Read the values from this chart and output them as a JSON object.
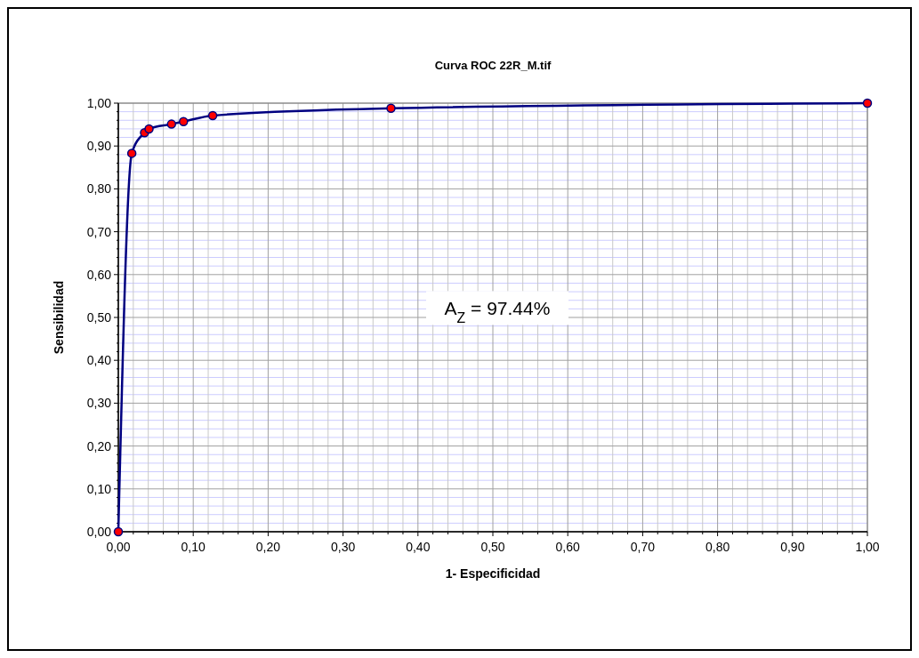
{
  "chart_data": {
    "type": "line",
    "title": "Curva ROC 22R_M.tif",
    "xlabel": "1- Especificidad",
    "ylabel": "Sensibilidad",
    "x": [
      0,
      0.018,
      0.035,
      0.041,
      0.071,
      0.087,
      0.126,
      0.364,
      1
    ],
    "series": [
      {
        "color": "#000080",
        "values": [
          0,
          0.883,
          0.931,
          0.94,
          0.951,
          0.957,
          0.971,
          0.988,
          1
        ]
      }
    ],
    "marker": "circle",
    "line_style": "solid",
    "grid": true,
    "xlim": [
      0,
      1
    ],
    "ylim": [
      0,
      1
    ],
    "xticks": [
      {
        "value": 0,
        "label": "0,00"
      },
      {
        "value": 0.02,
        "label": null
      },
      {
        "value": 0.04,
        "label": null
      },
      {
        "value": 0.06,
        "label": null
      },
      {
        "value": 0.08,
        "label": null
      },
      {
        "value": 0.1,
        "label": "0,10"
      },
      {
        "value": 0.12,
        "label": null
      },
      {
        "value": 0.14,
        "label": null
      },
      {
        "value": 0.16,
        "label": null
      },
      {
        "value": 0.18,
        "label": null
      },
      {
        "value": 0.2,
        "label": "0,20"
      },
      {
        "value": 0.22,
        "label": null
      },
      {
        "value": 0.24,
        "label": null
      },
      {
        "value": 0.26,
        "label": null
      },
      {
        "value": 0.28,
        "label": null
      },
      {
        "value": 0.3,
        "label": "0,30"
      },
      {
        "value": 0.32,
        "label": null
      },
      {
        "value": 0.34,
        "label": null
      },
      {
        "value": 0.36,
        "label": null
      },
      {
        "value": 0.38,
        "label": null
      },
      {
        "value": 0.4,
        "label": "0,40"
      },
      {
        "value": 0.42,
        "label": null
      },
      {
        "value": 0.44,
        "label": null
      },
      {
        "value": 0.46,
        "label": null
      },
      {
        "value": 0.48,
        "label": null
      },
      {
        "value": 0.5,
        "label": "0,50"
      },
      {
        "value": 0.52,
        "label": null
      },
      {
        "value": 0.54,
        "label": null
      },
      {
        "value": 0.56,
        "label": null
      },
      {
        "value": 0.58,
        "label": null
      },
      {
        "value": 0.6,
        "label": "0,60"
      },
      {
        "value": 0.62,
        "label": null
      },
      {
        "value": 0.64,
        "label": null
      },
      {
        "value": 0.66,
        "label": null
      },
      {
        "value": 0.68,
        "label": null
      },
      {
        "value": 0.7,
        "label": "0,70"
      },
      {
        "value": 0.72,
        "label": null
      },
      {
        "value": 0.74,
        "label": null
      },
      {
        "value": 0.76,
        "label": null
      },
      {
        "value": 0.78,
        "label": null
      },
      {
        "value": 0.8,
        "label": "0,80"
      },
      {
        "value": 0.82,
        "label": null
      },
      {
        "value": 0.84,
        "label": null
      },
      {
        "value": 0.86,
        "label": null
      },
      {
        "value": 0.88,
        "label": null
      },
      {
        "value": 0.9,
        "label": "0,90"
      },
      {
        "value": 0.92,
        "label": null
      },
      {
        "value": 0.94,
        "label": null
      },
      {
        "value": 0.96,
        "label": null
      },
      {
        "value": 0.98,
        "label": null
      },
      {
        "value": 1,
        "label": "1,00"
      }
    ],
    "yticks": [
      {
        "value": 0,
        "label": "0,00"
      },
      {
        "value": 0.02,
        "label": null
      },
      {
        "value": 0.04,
        "label": null
      },
      {
        "value": 0.06,
        "label": null
      },
      {
        "value": 0.08,
        "label": null
      },
      {
        "value": 0.1,
        "label": "0,10"
      },
      {
        "value": 0.12,
        "label": null
      },
      {
        "value": 0.14,
        "label": null
      },
      {
        "value": 0.16,
        "label": null
      },
      {
        "value": 0.18,
        "label": null
      },
      {
        "value": 0.2,
        "label": "0,20"
      },
      {
        "value": 0.22,
        "label": null
      },
      {
        "value": 0.24,
        "label": null
      },
      {
        "value": 0.26,
        "label": null
      },
      {
        "value": 0.28,
        "label": null
      },
      {
        "value": 0.3,
        "label": "0,30"
      },
      {
        "value": 0.32,
        "label": null
      },
      {
        "value": 0.34,
        "label": null
      },
      {
        "value": 0.36,
        "label": null
      },
      {
        "value": 0.38,
        "label": null
      },
      {
        "value": 0.4,
        "label": "0,40"
      },
      {
        "value": 0.42,
        "label": null
      },
      {
        "value": 0.44,
        "label": null
      },
      {
        "value": 0.46,
        "label": null
      },
      {
        "value": 0.48,
        "label": null
      },
      {
        "value": 0.5,
        "label": "0,50"
      },
      {
        "value": 0.52,
        "label": null
      },
      {
        "value": 0.54,
        "label": null
      },
      {
        "value": 0.56,
        "label": null
      },
      {
        "value": 0.58,
        "label": null
      },
      {
        "value": 0.6,
        "label": "0,60"
      },
      {
        "value": 0.62,
        "label": null
      },
      {
        "value": 0.64,
        "label": null
      },
      {
        "value": 0.66,
        "label": null
      },
      {
        "value": 0.68,
        "label": null
      },
      {
        "value": 0.7,
        "label": "0,70"
      },
      {
        "value": 0.72,
        "label": null
      },
      {
        "value": 0.74,
        "label": null
      },
      {
        "value": 0.76,
        "label": null
      },
      {
        "value": 0.78,
        "label": null
      },
      {
        "value": 0.8,
        "label": "0,80"
      },
      {
        "value": 0.82,
        "label": null
      },
      {
        "value": 0.84,
        "label": null
      },
      {
        "value": 0.86,
        "label": null
      },
      {
        "value": 0.88,
        "label": null
      },
      {
        "value": 0.9,
        "label": "0,90"
      },
      {
        "value": 0.92,
        "label": null
      },
      {
        "value": 0.94,
        "label": null
      },
      {
        "value": 0.96,
        "label": null
      },
      {
        "value": 0.98,
        "label": null
      },
      {
        "value": 1,
        "label": "1,00"
      }
    ],
    "annotations": [
      "A$_{Z}$ = 97.44%"
    ]
  }
}
